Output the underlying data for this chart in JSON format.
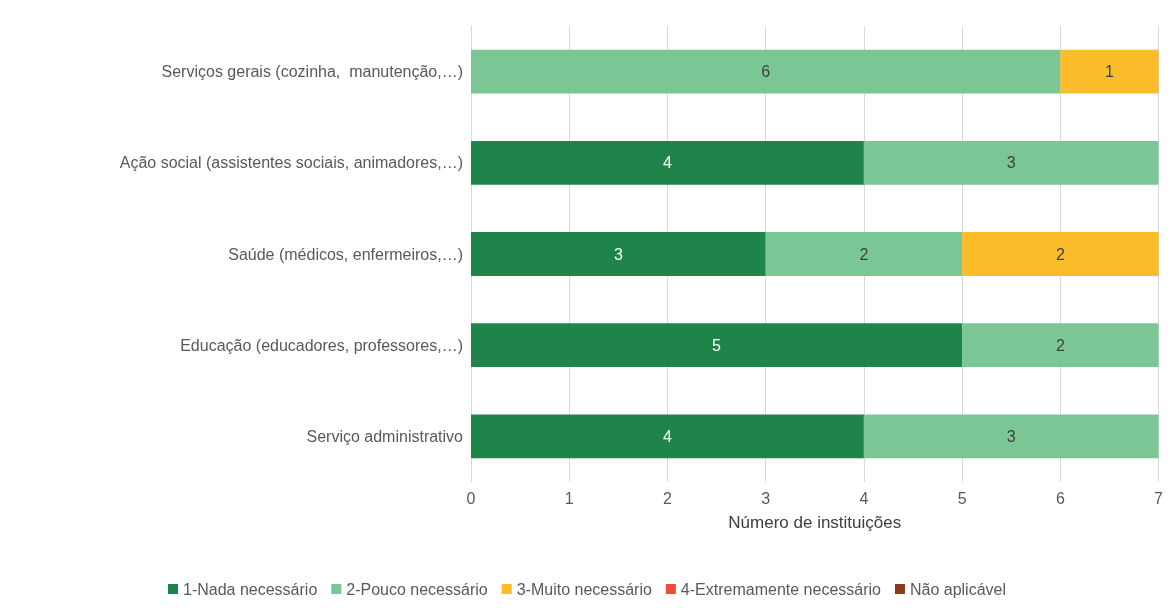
{
  "chart_data": {
    "type": "bar",
    "orientation": "horizontal",
    "stacked": true,
    "xlabel": "Número de instituições",
    "categories": [
      "Serviços gerais (cozinha,  manutenção,…)",
      "Ação social (assistentes sociais, animadores,…)",
      "Saúde (médicos, enfermeiros,…)",
      "Educação (educadores, professores,…)",
      "Serviço administrativo"
    ],
    "series": [
      {
        "name": "1-Nada necessário",
        "color": "#1e8449",
        "values": [
          null,
          4,
          3,
          5,
          4
        ]
      },
      {
        "name": "2-Pouco necessário",
        "color": "#7ac795",
        "values": [
          6,
          3,
          2,
          2,
          3
        ]
      },
      {
        "name": "3-Muito necessário",
        "color": "#fbbc29",
        "values": [
          1,
          null,
          2,
          null,
          null
        ]
      },
      {
        "name": "4-Extremamente necessário",
        "color": "#f04b3a",
        "values": [
          null,
          null,
          null,
          null,
          null
        ]
      },
      {
        "name": "Não aplicável",
        "color": "#8b3a1e",
        "values": [
          null,
          null,
          null,
          null,
          null
        ]
      }
    ],
    "xlim": [
      0,
      7
    ],
    "xticks": [
      0,
      1,
      2,
      3,
      4,
      5,
      6,
      7
    ],
    "grid": "x",
    "legend": "bottom",
    "data_labels": true
  }
}
